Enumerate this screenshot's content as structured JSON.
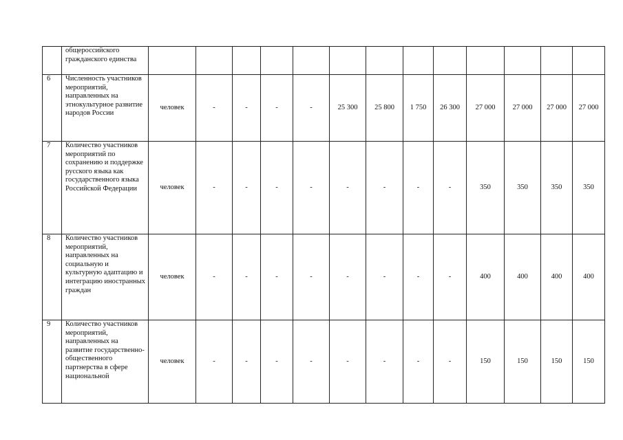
{
  "table": {
    "rows": [
      {
        "num": "",
        "name": "общероссийского гражданского единства",
        "unit": "",
        "values": [
          "",
          "",
          "",
          "",
          "",
          "",
          "",
          "",
          "",
          "",
          "",
          ""
        ]
      },
      {
        "num": "6",
        "name": "Численность участников мероприятий, направленных на этнокультурное развитие народов России",
        "unit": "человек",
        "values": [
          "-",
          "-",
          "-",
          "-",
          "25 300",
          "25 800",
          "1 750",
          "26 300",
          "27 000",
          "27 000",
          "27 000",
          "27 000"
        ]
      },
      {
        "num": "7",
        "name": "Количество участников мероприятий по сохранению и поддержке русского языка как государственного языка Российской Федерации",
        "unit": "человек",
        "values": [
          "-",
          "-",
          "-",
          "-",
          "-",
          "-",
          "-",
          "-",
          "350",
          "350",
          "350",
          "350"
        ]
      },
      {
        "num": "8",
        "name": "Количество участников мероприятий, направленных на социальную и культурную адаптацию и интеграцию иностранных граждан",
        "unit": "человек",
        "values": [
          "-",
          "-",
          "-",
          "-",
          "-",
          "-",
          "-",
          "-",
          "400",
          "400",
          "400",
          "400"
        ]
      },
      {
        "num": "9",
        "name": "Количество участников мероприятий, направленных на развитие государственно-общественного партнерства в сфере национальной",
        "unit": "человек",
        "values": [
          "-",
          "-",
          "-",
          "-",
          "-",
          "-",
          "-",
          "-",
          "150",
          "150",
          "150",
          "150"
        ]
      }
    ]
  }
}
